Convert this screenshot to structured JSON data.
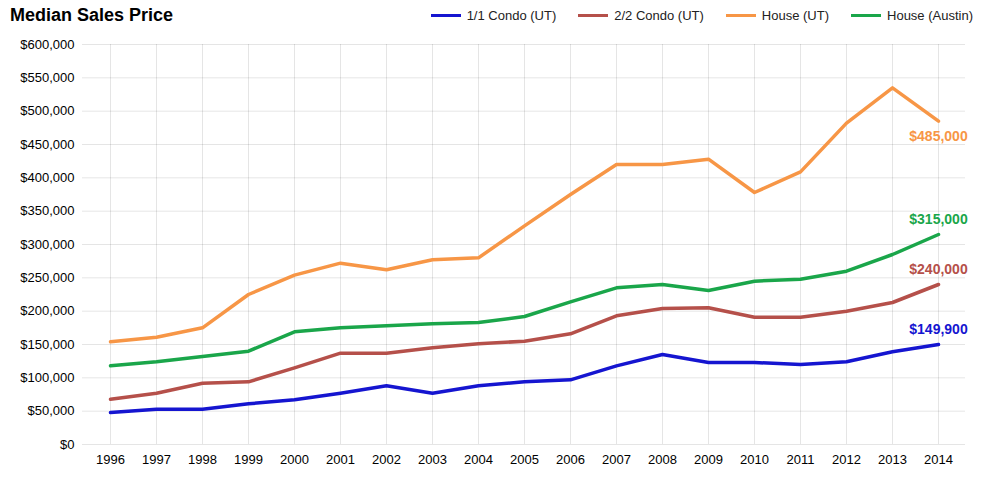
{
  "chart_data": {
    "type": "line",
    "title": "Median Sales Price",
    "x": [
      1996,
      1997,
      1998,
      1999,
      2000,
      2001,
      2002,
      2003,
      2004,
      2005,
      2006,
      2007,
      2008,
      2009,
      2010,
      2011,
      2012,
      2013,
      2014
    ],
    "series": [
      {
        "name": "1/1 Condo (UT)",
        "color": "#1515d0",
        "values": [
          48000,
          53000,
          53000,
          61000,
          67000,
          77000,
          88000,
          77000,
          88000,
          94000,
          97000,
          118000,
          135000,
          123000,
          123000,
          120000,
          124000,
          139000,
          149900
        ],
        "value_labels": [
          null,
          null,
          null,
          null,
          null,
          null,
          null,
          null,
          null,
          null,
          null,
          null,
          null,
          null,
          null,
          null,
          null,
          null,
          "$149,900"
        ]
      },
      {
        "name": "2/2 Condo (UT)",
        "color": "#b5504a",
        "values": [
          68000,
          77000,
          92000,
          94000,
          115000,
          137000,
          137000,
          145000,
          151000,
          155000,
          166000,
          193000,
          204000,
          205000,
          191000,
          191000,
          200000,
          213000,
          240000
        ],
        "value_labels": [
          null,
          null,
          null,
          null,
          null,
          null,
          null,
          null,
          null,
          null,
          null,
          null,
          null,
          null,
          null,
          null,
          null,
          null,
          "$240,000"
        ]
      },
      {
        "name": "House (UT)",
        "color": "#f79646",
        "values": [
          154000,
          161000,
          175000,
          225000,
          254000,
          272000,
          262000,
          277000,
          280000,
          328000,
          375000,
          420000,
          420000,
          428000,
          378000,
          409000,
          482000,
          535000,
          485000
        ],
        "value_labels": [
          null,
          null,
          null,
          null,
          null,
          null,
          null,
          null,
          null,
          null,
          null,
          null,
          null,
          null,
          null,
          null,
          null,
          null,
          "$485,000"
        ]
      },
      {
        "name": "House (Austin)",
        "color": "#1aa64a",
        "values": [
          118000,
          124000,
          132000,
          140000,
          169000,
          175000,
          178000,
          181000,
          183000,
          192000,
          214000,
          235000,
          240000,
          231000,
          245000,
          248000,
          260000,
          285000,
          315000
        ],
        "value_labels": [
          null,
          null,
          null,
          null,
          null,
          null,
          null,
          null,
          null,
          null,
          null,
          null,
          null,
          null,
          null,
          null,
          null,
          null,
          "$315,000"
        ]
      }
    ],
    "ylim": [
      0,
      600000
    ],
    "yticks": [
      {
        "value": 0,
        "label": "$0"
      },
      {
        "value": 50000,
        "label": "$50,000"
      },
      {
        "value": 100000,
        "label": "$100,000"
      },
      {
        "value": 150000,
        "label": "$150,000"
      },
      {
        "value": 200000,
        "label": "$200,000"
      },
      {
        "value": 250000,
        "label": "$250,000"
      },
      {
        "value": 300000,
        "label": "$300,000"
      },
      {
        "value": 350000,
        "label": "$350,000"
      },
      {
        "value": 400000,
        "label": "$400,000"
      },
      {
        "value": 450000,
        "label": "$450,000"
      },
      {
        "value": 500000,
        "label": "$500,000"
      },
      {
        "value": 550000,
        "label": "$550,000"
      },
      {
        "value": 600000,
        "label": "$600,000"
      }
    ],
    "grid": true,
    "legend": "top-right",
    "data_labels": true
  }
}
